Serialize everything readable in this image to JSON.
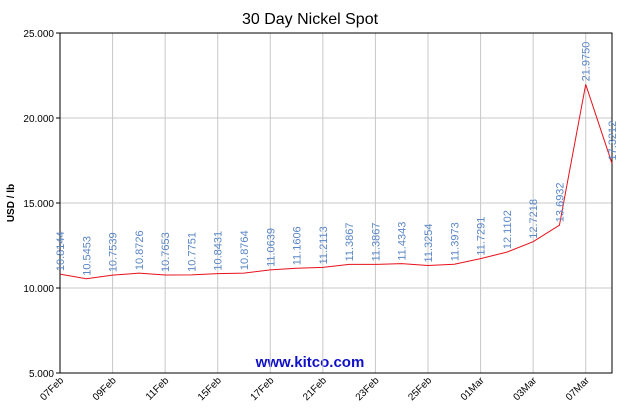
{
  "chart_data": {
    "type": "line",
    "title": "30 Day Nickel Spot",
    "y_label": "USD / lb",
    "watermark": "www.kitco.com",
    "categories": [
      "07Feb",
      null,
      "09Feb",
      null,
      "11Feb",
      null,
      "15Feb",
      null,
      "17Feb",
      null,
      "21Feb",
      null,
      "23Feb",
      null,
      "25Feb",
      null,
      "01Mar",
      null,
      "03Mar",
      null,
      "07Mar",
      null
    ],
    "values": [
      10.8144,
      10.5453,
      10.7539,
      10.8726,
      10.7653,
      10.7751,
      10.8431,
      10.8764,
      11.0639,
      11.1606,
      11.2113,
      11.3867,
      11.3867,
      11.4343,
      11.3254,
      11.3973,
      11.7291,
      12.1102,
      12.7218,
      13.6932,
      21.975,
      17.3212
    ],
    "value_labels": [
      "10.8144",
      "10.5453",
      "10.7539",
      "10.8726",
      "10.7653",
      "10.7751",
      "10.8431",
      "10.8764",
      "11.0639",
      "11.1606",
      "11.2113",
      "11.3867",
      "11.3867",
      "11.4343",
      "11.3254",
      "11.3973",
      "11.7291",
      "12.1102",
      "12.7218",
      "13.6932",
      "21.9750",
      "17.3212"
    ],
    "color": "#e8101a",
    "label_color": "#5a86c6",
    "ylim": [
      5,
      25
    ],
    "yticks": [
      {
        "value": 5,
        "label": "5.000"
      },
      {
        "value": 10,
        "label": "10.000"
      },
      {
        "value": 15,
        "label": "15.000"
      },
      {
        "value": 20,
        "label": "20.000"
      },
      {
        "value": 25,
        "label": "25.000"
      }
    ],
    "grid": true
  }
}
